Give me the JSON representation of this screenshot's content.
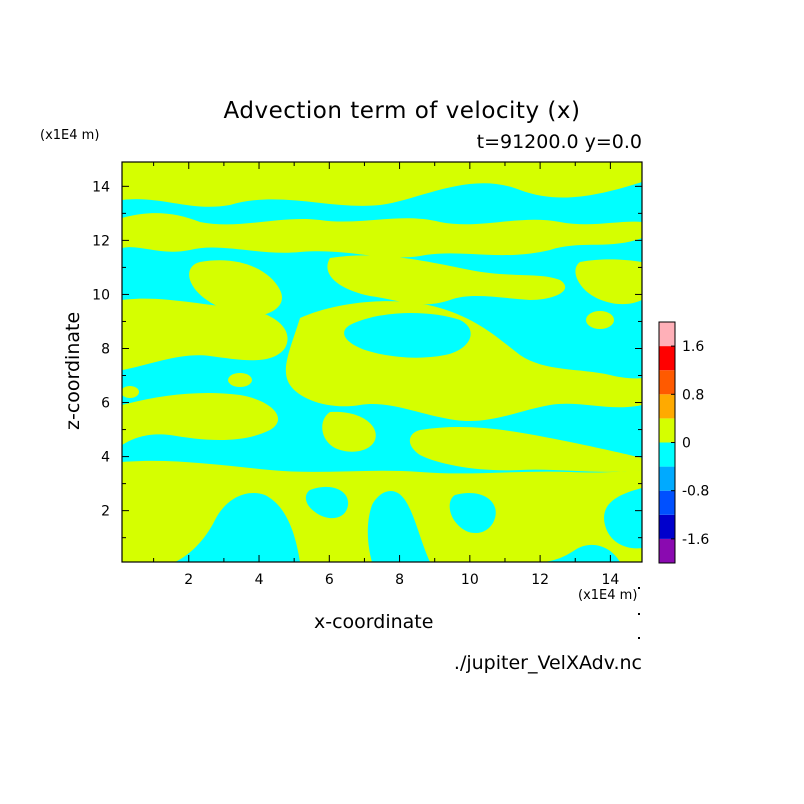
{
  "chart_data": {
    "type": "heatmap",
    "title": "Advection term of velocity (x)",
    "subtitle": "t=91200.0 y=0.0",
    "xlabel": "x-coordinate",
    "ylabel": "z-coordinate",
    "x_unit": "(x1E4 m)",
    "y_unit": "(x1E4 m)",
    "xlim": [
      0.1,
      14.9
    ],
    "ylim": [
      0.1,
      14.9
    ],
    "x_ticks": [
      2,
      4,
      6,
      8,
      10,
      12,
      14
    ],
    "y_ticks": [
      2,
      4,
      6,
      8,
      10,
      12,
      14
    ],
    "colorbar": {
      "levels": [
        -2.0,
        -1.6,
        -1.2,
        -0.8,
        -0.4,
        0.0,
        0.4,
        0.8,
        1.2,
        1.6,
        2.0
      ],
      "colors": [
        "#8a0ab0",
        "#0000cc",
        "#0050ff",
        "#00aaff",
        "#00ffff",
        "#d5ff00",
        "#ffaa00",
        "#ff5a00",
        "#ff0000",
        "#ffb0b8"
      ],
      "tick_labels": [
        "1.6",
        "0.8",
        "0",
        "-0.8",
        "-1.6"
      ]
    },
    "field_colors": {
      "positive": "#d5ff00",
      "negative": "#00ffff"
    },
    "field_description": "field alternates between small positive (0 to 0.4) and small negative (-0.4 to 0) values"
  },
  "filename": "./jupiter_VelXAdv.nc"
}
